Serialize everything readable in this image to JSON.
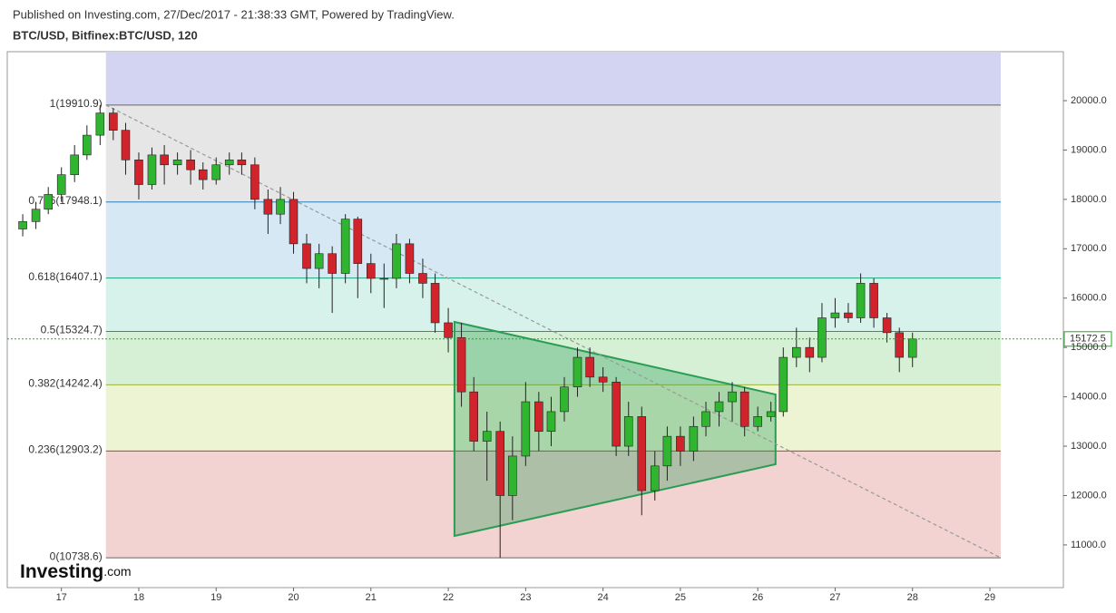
{
  "header": {
    "published": "Published on Investing.com, 27/Dec/2017 - 21:38:33 GMT, Powered by TradingView.",
    "symbol": "BTC/USD, Bitfinex:BTC/USD, 120"
  },
  "logo": {
    "brand": "Investing",
    "suffix": ".com"
  },
  "chart_data": {
    "type": "candlestick",
    "x": [
      16.5,
      16.67,
      16.83,
      17,
      17.17,
      17.33,
      17.5,
      17.67,
      17.83,
      18,
      18.17,
      18.33,
      18.5,
      18.67,
      18.83,
      19,
      19.17,
      19.33,
      19.5,
      19.67,
      19.83,
      20,
      20.17,
      20.33,
      20.5,
      20.67,
      20.83,
      21,
      21.17,
      21.33,
      21.5,
      21.67,
      21.83,
      22,
      22.17,
      22.33,
      22.5,
      22.67,
      22.83,
      23,
      23.17,
      23.33,
      23.5,
      23.67,
      23.83,
      24,
      24.17,
      24.33,
      24.5,
      24.67,
      24.83,
      25,
      25.17,
      25.33,
      25.5,
      25.67,
      25.83,
      26,
      26.17,
      26.33,
      26.5,
      26.67,
      26.83,
      27,
      27.17,
      27.33,
      27.5,
      27.67,
      27.83,
      28
    ],
    "open": [
      17400,
      17550,
      17800,
      18100,
      18500,
      18900,
      19300,
      19750,
      19400,
      18800,
      18300,
      18900,
      18700,
      18800,
      18600,
      18400,
      18700,
      18800,
      18700,
      18000,
      17700,
      18000,
      17100,
      16600,
      16900,
      16500,
      17600,
      16700,
      16400,
      16400,
      17100,
      16500,
      16300,
      15500,
      15200,
      14100,
      13100,
      13300,
      12000,
      12800,
      13900,
      13300,
      13700,
      14200,
      14800,
      14400,
      14300,
      13000,
      13600,
      12100,
      12600,
      13200,
      12900,
      13400,
      13700,
      13900,
      14100,
      13400,
      13600,
      13700,
      14800,
      15000,
      14800,
      15600,
      15700,
      15600,
      16300,
      15600,
      15300,
      14800
    ],
    "high": [
      17700,
      17950,
      18250,
      18650,
      19100,
      19500,
      19910.9,
      19850,
      19550,
      18950,
      19050,
      19100,
      18950,
      19000,
      18750,
      18850,
      18950,
      18950,
      18850,
      18200,
      18250,
      18150,
      17300,
      17100,
      17050,
      17700,
      17650,
      16900,
      16700,
      17300,
      17200,
      16800,
      16500,
      15800,
      15500,
      14400,
      13700,
      13500,
      13200,
      14300,
      14100,
      14000,
      14400,
      15000,
      15000,
      14600,
      14400,
      13900,
      13800,
      12900,
      13400,
      13400,
      13600,
      13900,
      14100,
      14300,
      14200,
      13800,
      13900,
      15000,
      15400,
      15200,
      15900,
      16000,
      15900,
      16500,
      16400,
      15700,
      15400,
      15300
    ],
    "low": [
      17250,
      17400,
      17700,
      17950,
      18350,
      18800,
      19100,
      19200,
      18500,
      18000,
      18200,
      18300,
      18500,
      18300,
      18200,
      18300,
      18500,
      18500,
      17800,
      17300,
      17500,
      16900,
      16300,
      16200,
      15700,
      16300,
      16000,
      16100,
      15800,
      16200,
      16300,
      16000,
      15300,
      14900,
      13800,
      12900,
      12300,
      10738.6,
      11500,
      12600,
      12900,
      13000,
      13500,
      14000,
      14200,
      14100,
      12800,
      12800,
      11600,
      11900,
      12300,
      12600,
      12700,
      13200,
      13400,
      13500,
      13200,
      13300,
      13500,
      13600,
      14600,
      14500,
      14700,
      15400,
      15500,
      15500,
      15400,
      15100,
      14500,
      14600
    ],
    "close": [
      17550,
      17800,
      18100,
      18500,
      18900,
      19300,
      19750,
      19400,
      18800,
      18300,
      18900,
      18700,
      18800,
      18600,
      18400,
      18700,
      18800,
      18700,
      18000,
      17700,
      18000,
      17100,
      16600,
      16900,
      16500,
      17600,
      16700,
      16400,
      16400,
      17100,
      16500,
      16300,
      15500,
      15200,
      14100,
      13100,
      13300,
      12000,
      12800,
      13900,
      13300,
      13700,
      14200,
      14800,
      14400,
      14300,
      13000,
      13600,
      12100,
      12600,
      13200,
      12900,
      13400,
      13700,
      13900,
      14100,
      13400,
      13600,
      13700,
      14800,
      15000,
      14800,
      15600,
      15700,
      15600,
      16300,
      15600,
      15300,
      14800,
      15172.5
    ],
    "up_color": "#2fb52f",
    "down_color": "#d0232b",
    "xlim": [
      16.3,
      29.95
    ],
    "xticks": [
      17,
      18,
      19,
      20,
      21,
      22,
      23,
      24,
      25,
      26,
      27,
      28,
      29
    ],
    "ylim": [
      10135,
      20992
    ],
    "yticks": [
      {
        "value": 11000,
        "label": "11000.0"
      },
      {
        "value": 12000,
        "label": "12000.0"
      },
      {
        "value": 13000,
        "label": "13000.0"
      },
      {
        "value": 14000,
        "label": "14000.0"
      },
      {
        "value": 15000,
        "label": "15000.0"
      },
      {
        "value": 16000,
        "label": "16000.0"
      },
      {
        "value": 17000,
        "label": "17000.0"
      },
      {
        "value": 18000,
        "label": "18000.0"
      },
      {
        "value": 19000,
        "label": "19000.0"
      },
      {
        "value": 20000,
        "label": "20000.0"
      }
    ],
    "fib_x": [
      17.575,
      29.14
    ],
    "fib_top_fill": "#d3d3f2",
    "fib_levels": [
      {
        "label": "1(19910.9)",
        "price": 19910.9,
        "color": "#666666",
        "fill": "#e6e6e6"
      },
      {
        "label": "0.786(17948.1)",
        "price": 17948.1,
        "color": "#2a7fb8",
        "fill": "#d5e8f3"
      },
      {
        "label": "0.618(16407.1)",
        "price": 16407.1,
        "color": "#1fa57a",
        "fill": "#d7f2ea"
      },
      {
        "label": "0.5(15324.7)",
        "price": 15324.7,
        "color": "#3a9a3a",
        "fill": "#d6f0d6"
      },
      {
        "label": "0.382(14242.4)",
        "price": 14242.4,
        "color": "#9ab33a",
        "fill": "#ecf4d4"
      },
      {
        "label": "0.236(12903.2)",
        "price": 12903.2,
        "color": "#cc3333",
        "fill": "#f3d2d2"
      },
      {
        "label": "0(10738.6)",
        "price": 10738.6,
        "color": "#666666"
      }
    ],
    "trendline": true,
    "triangle": {
      "x": [
        22.08,
        26.23,
        26.23,
        22.08
      ],
      "y": [
        15518,
        14048,
        12634,
        11182
      ],
      "color": "#2a9d55"
    },
    "last_price": {
      "value": 15172.5,
      "label": "15172.5",
      "color": "#22aa22"
    }
  }
}
